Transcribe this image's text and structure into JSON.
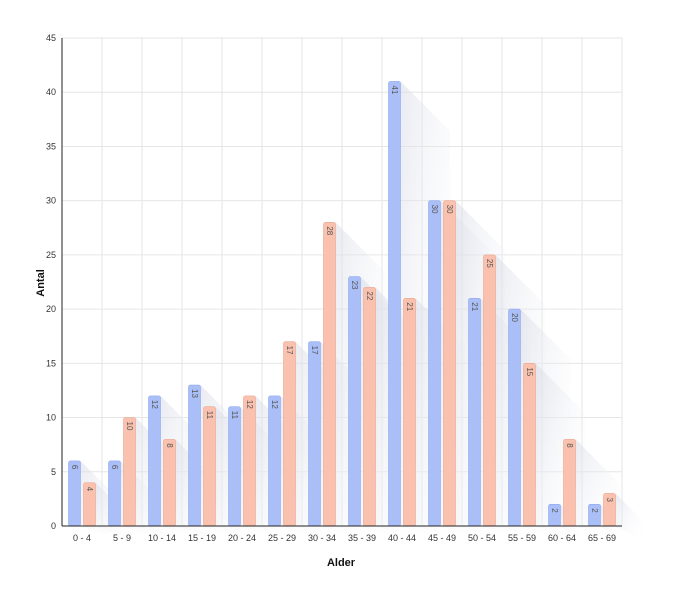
{
  "chart_data": {
    "type": "bar",
    "title": "",
    "xlabel": "Alder",
    "ylabel": "Antal",
    "ylim": [
      0,
      45
    ],
    "yticks": [
      0,
      5,
      10,
      15,
      20,
      25,
      30,
      35,
      40,
      45
    ],
    "grid": true,
    "legend": "none",
    "categories": [
      "0 - 4",
      "5 - 9",
      "10 - 14",
      "15 - 19",
      "20 - 24",
      "25 - 29",
      "30 - 34",
      "35 - 39",
      "40 - 44",
      "45 - 49",
      "50 - 54",
      "55 - 59",
      "60 - 64",
      "65 - 69"
    ],
    "series": [
      {
        "values": [
          6,
          6,
          12,
          13,
          11,
          12,
          17,
          23,
          41,
          30,
          21,
          20,
          2,
          2
        ],
        "color": "#aabff7",
        "edge": "#8fa8ef"
      },
      {
        "values": [
          4,
          10,
          8,
          11,
          12,
          17,
          28,
          22,
          21,
          30,
          25,
          15,
          8,
          3
        ],
        "color": "#f9c1ae",
        "edge": "#e8a792"
      }
    ]
  }
}
